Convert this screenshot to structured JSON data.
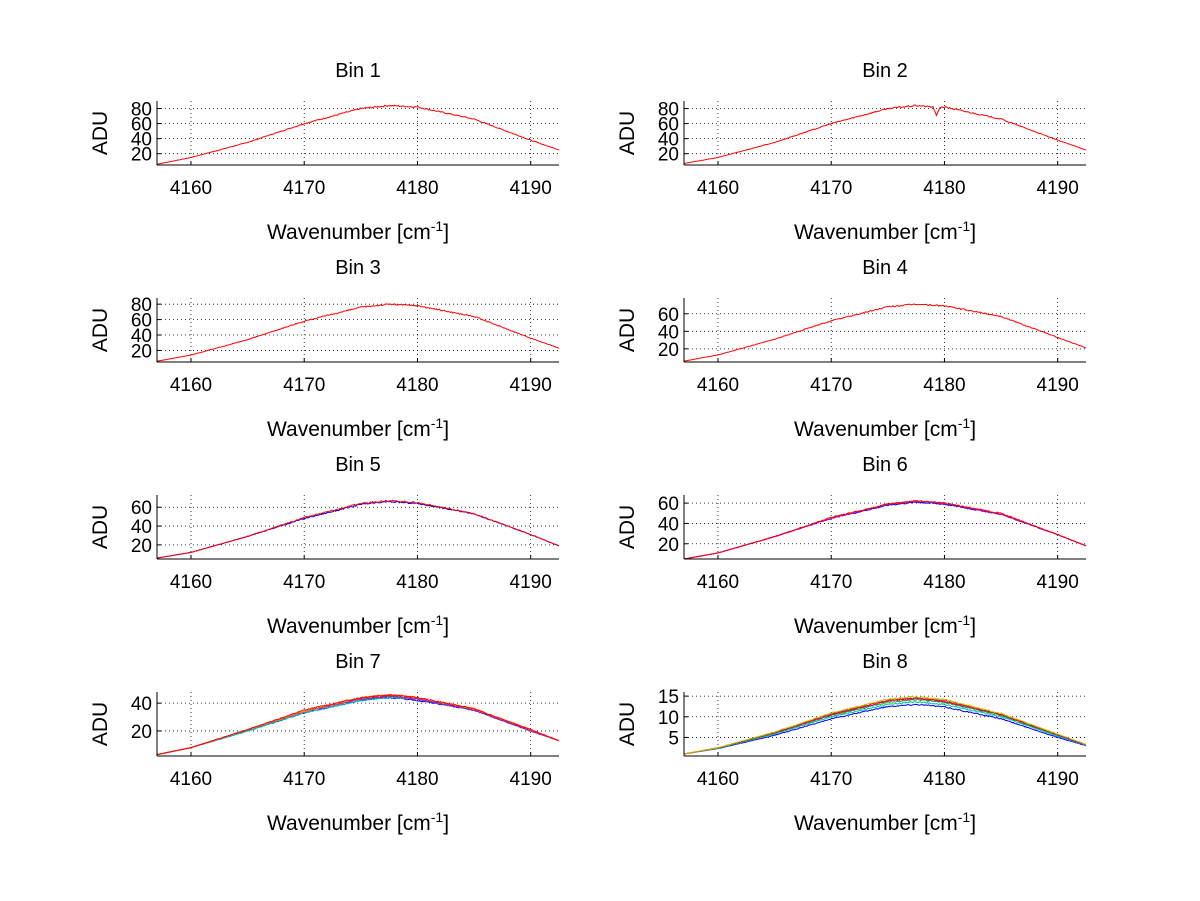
{
  "figure": {
    "background": "#ffffff",
    "line_colors": [
      "#0000ff",
      "#00bf00",
      "#00bfbf",
      "#bf00bf",
      "#bfbf00",
      "#ff8000",
      "#ff0000"
    ]
  },
  "chart_data": [
    {
      "type": "line",
      "title": "Bin 1",
      "xlabel": "Wavenumber [cm",
      "xlabel_sup": "-1",
      "xlabel_end": "]",
      "ylabel": "ADU",
      "xlim": [
        4157,
        4192.5
      ],
      "ylim": [
        5,
        90
      ],
      "xticks": [
        4160,
        4170,
        4180,
        4190
      ],
      "yticks": [
        20,
        40,
        60,
        80
      ],
      "grid": true,
      "series": [
        {
          "color": "#ff0000",
          "x": [
            4157,
            4160,
            4165,
            4170,
            4175,
            4177.5,
            4180,
            4185,
            4190,
            4192.5
          ],
          "y": [
            6,
            15,
            35,
            60,
            80,
            84,
            82,
            66,
            38,
            25
          ]
        }
      ]
    },
    {
      "type": "line",
      "title": "Bin 2",
      "xlabel": "Wavenumber [cm",
      "xlabel_sup": "-1",
      "xlabel_end": "]",
      "ylabel": "ADU",
      "xlim": [
        4157,
        4192.5
      ],
      "ylim": [
        5,
        90
      ],
      "xticks": [
        4160,
        4170,
        4180,
        4190
      ],
      "yticks": [
        20,
        40,
        60,
        80
      ],
      "grid": true,
      "series": [
        {
          "color": "#ff0000",
          "x": [
            4157,
            4160,
            4165,
            4170,
            4175,
            4177.5,
            4179,
            4179.3,
            4179.6,
            4180,
            4185,
            4190,
            4192.5
          ],
          "y": [
            7,
            15,
            35,
            60,
            80,
            84,
            82,
            70,
            82,
            82,
            66,
            38,
            25
          ]
        }
      ]
    },
    {
      "type": "line",
      "title": "Bin 3",
      "xlabel": "Wavenumber [cm",
      "xlabel_sup": "-1",
      "xlabel_end": "]",
      "ylabel": "ADU",
      "xlim": [
        4157,
        4192.5
      ],
      "ylim": [
        5,
        88
      ],
      "xticks": [
        4160,
        4170,
        4180,
        4190
      ],
      "yticks": [
        20,
        40,
        60,
        80
      ],
      "grid": true,
      "series": [
        {
          "color": "#ff0000",
          "x": [
            4157,
            4160,
            4165,
            4170,
            4175,
            4177.5,
            4180,
            4185,
            4190,
            4192.5
          ],
          "y": [
            6,
            14,
            34,
            58,
            76,
            80,
            78,
            64,
            36,
            23
          ]
        }
      ]
    },
    {
      "type": "line",
      "title": "Bin 4",
      "xlabel": "Wavenumber [cm",
      "xlabel_sup": "-1",
      "xlabel_end": "]",
      "ylabel": "ADU",
      "xlim": [
        4157,
        4192.5
      ],
      "ylim": [
        5,
        78
      ],
      "xticks": [
        4160,
        4170,
        4180,
        4190
      ],
      "yticks": [
        20,
        40,
        60
      ],
      "grid": true,
      "series": [
        {
          "color": "#ff0000",
          "x": [
            4157,
            4160,
            4165,
            4170,
            4175,
            4177.5,
            4180,
            4185,
            4190,
            4192.5
          ],
          "y": [
            6,
            13,
            31,
            52,
            68,
            71,
            69,
            57,
            33,
            21
          ]
        }
      ]
    },
    {
      "type": "line",
      "title": "Bin 5",
      "xlabel": "Wavenumber [cm",
      "xlabel_sup": "-1",
      "xlabel_end": "]",
      "ylabel": "ADU",
      "xlim": [
        4157,
        4192.5
      ],
      "ylim": [
        5,
        73
      ],
      "xticks": [
        4160,
        4170,
        4180,
        4190
      ],
      "yticks": [
        20,
        40,
        60
      ],
      "grid": true,
      "series": [
        {
          "color": "#0000ff",
          "x": [
            4157,
            4160,
            4165,
            4170,
            4175,
            4177.5,
            4180,
            4185,
            4190,
            4192.5
          ],
          "y": [
            6,
            12,
            29,
            48,
            63,
            66,
            64,
            53,
            31,
            19
          ]
        },
        {
          "color": "#ff0000",
          "x": [
            4157,
            4160,
            4165,
            4170,
            4175,
            4177.5,
            4180,
            4185,
            4190,
            4192.5
          ],
          "y": [
            6,
            12,
            29,
            49,
            64,
            67,
            65,
            53,
            31,
            19
          ]
        }
      ]
    },
    {
      "type": "line",
      "title": "Bin 6",
      "xlabel": "Wavenumber [cm",
      "xlabel_sup": "-1",
      "xlabel_end": "]",
      "ylabel": "ADU",
      "xlim": [
        4157,
        4192.5
      ],
      "ylim": [
        5,
        68
      ],
      "xticks": [
        4160,
        4170,
        4180,
        4190
      ],
      "yticks": [
        20,
        40,
        60
      ],
      "grid": true,
      "series": [
        {
          "color": "#0000ff",
          "x": [
            4157,
            4160,
            4165,
            4170,
            4175,
            4177.5,
            4180,
            4185,
            4190,
            4192.5
          ],
          "y": [
            5,
            11,
            27,
            45,
            58,
            61,
            59,
            49,
            29,
            18
          ]
        },
        {
          "color": "#bf00bf",
          "x": [
            4157,
            4160,
            4165,
            4170,
            4175,
            4177.5,
            4180,
            4185,
            4190,
            4192.5
          ],
          "y": [
            5,
            11,
            27,
            45,
            59,
            62,
            60,
            49,
            29,
            18
          ]
        },
        {
          "color": "#ff0000",
          "x": [
            4157,
            4160,
            4165,
            4170,
            4175,
            4177.5,
            4180,
            4185,
            4190,
            4192.5
          ],
          "y": [
            5,
            11,
            27,
            46,
            59,
            62,
            60,
            50,
            29,
            18
          ]
        }
      ]
    },
    {
      "type": "line",
      "title": "Bin 7",
      "xlabel": "Wavenumber [cm",
      "xlabel_sup": "-1",
      "xlabel_end": "]",
      "ylabel": "ADU",
      "xlim": [
        4157,
        4192.5
      ],
      "ylim": [
        2,
        48
      ],
      "xticks": [
        4160,
        4170,
        4180,
        4190
      ],
      "yticks": [
        20,
        40
      ],
      "grid": true,
      "series": [
        {
          "color": "#0000ff",
          "x": [
            4157,
            4160,
            4165,
            4170,
            4175,
            4177.5,
            4180,
            4185,
            4190,
            4192.5
          ],
          "y": [
            3,
            8,
            20,
            33,
            42,
            44,
            42,
            35,
            20,
            13
          ]
        },
        {
          "color": "#00bf00",
          "x": [
            4157,
            4160,
            4165,
            4170,
            4175,
            4177.5,
            4180,
            4185,
            4190,
            4192.5
          ],
          "y": [
            3,
            8,
            20,
            34,
            43,
            45,
            43,
            35,
            20,
            13
          ]
        },
        {
          "color": "#00bfbf",
          "x": [
            4157,
            4160,
            4165,
            4170,
            4175,
            4177.5,
            4180,
            4185,
            4190,
            4192.5
          ],
          "y": [
            3,
            8,
            20,
            33,
            42,
            44,
            43,
            35,
            20,
            13
          ]
        },
        {
          "color": "#bf00bf",
          "x": [
            4157,
            4160,
            4165,
            4170,
            4175,
            4177.5,
            4180,
            4185,
            4190,
            4192.5
          ],
          "y": [
            3,
            8,
            21,
            34,
            43,
            45,
            43,
            35,
            20,
            13
          ]
        },
        {
          "color": "#ff8000",
          "x": [
            4157,
            4160,
            4165,
            4170,
            4175,
            4177.5,
            4180,
            4185,
            4190,
            4192.5
          ],
          "y": [
            3,
            8,
            21,
            34,
            44,
            46,
            44,
            36,
            21,
            13
          ]
        },
        {
          "color": "#ff0000",
          "x": [
            4157,
            4160,
            4165,
            4170,
            4175,
            4177.5,
            4180,
            4185,
            4190,
            4192.5
          ],
          "y": [
            3,
            8,
            21,
            35,
            44,
            46,
            44,
            36,
            21,
            13
          ]
        }
      ]
    },
    {
      "type": "line",
      "title": "Bin 8",
      "xlabel": "Wavenumber [cm",
      "xlabel_sup": "-1",
      "xlabel_end": "]",
      "ylabel": "ADU",
      "xlim": [
        4157,
        4192.5
      ],
      "ylim": [
        0.5,
        16
      ],
      "xticks": [
        4160,
        4170,
        4180,
        4190
      ],
      "yticks": [
        5,
        10,
        15
      ],
      "grid": true,
      "series": [
        {
          "color": "#0000ff",
          "x": [
            4157,
            4160,
            4165,
            4170,
            4175,
            4177.5,
            4180,
            4185,
            4190,
            4192.5
          ],
          "y": [
            1,
            2.3,
            5.5,
            9.5,
            12.5,
            13,
            12.4,
            9.5,
            5,
            3
          ]
        },
        {
          "color": "#00bfbf",
          "x": [
            4157,
            4160,
            4165,
            4170,
            4175,
            4177.5,
            4180,
            4185,
            4190,
            4192.5
          ],
          "y": [
            1,
            2.4,
            5.8,
            10,
            13,
            13.6,
            13,
            10,
            5.3,
            3.1
          ]
        },
        {
          "color": "#00bf00",
          "x": [
            4157,
            4160,
            4165,
            4170,
            4175,
            4177.5,
            4180,
            4185,
            4190,
            4192.5
          ],
          "y": [
            1,
            2.4,
            6,
            10.3,
            13.5,
            14.2,
            13.5,
            10.3,
            5.5,
            3.2
          ]
        },
        {
          "color": "#bf00bf",
          "x": [
            4157,
            4160,
            4165,
            4170,
            4175,
            4177.5,
            4180,
            4185,
            4190,
            4192.5
          ],
          "y": [
            1,
            2.5,
            6.1,
            10.5,
            13.8,
            14.4,
            13.7,
            10.5,
            5.6,
            3.2
          ]
        },
        {
          "color": "#ff0000",
          "x": [
            4157,
            4160,
            4165,
            4170,
            4175,
            4177.5,
            4180,
            4185,
            4190,
            4192.5
          ],
          "y": [
            1,
            2.5,
            6.2,
            10.7,
            14,
            14.6,
            13.9,
            10.6,
            5.7,
            3.3
          ]
        },
        {
          "color": "#bfbf00",
          "x": [
            4157,
            4160,
            4165,
            4170,
            4175,
            4177.5,
            4180,
            4185,
            4190,
            4192.5
          ],
          "y": [
            1,
            2.5,
            6.3,
            10.9,
            14.3,
            14.9,
            14.2,
            10.8,
            5.8,
            3.3
          ]
        }
      ]
    }
  ]
}
